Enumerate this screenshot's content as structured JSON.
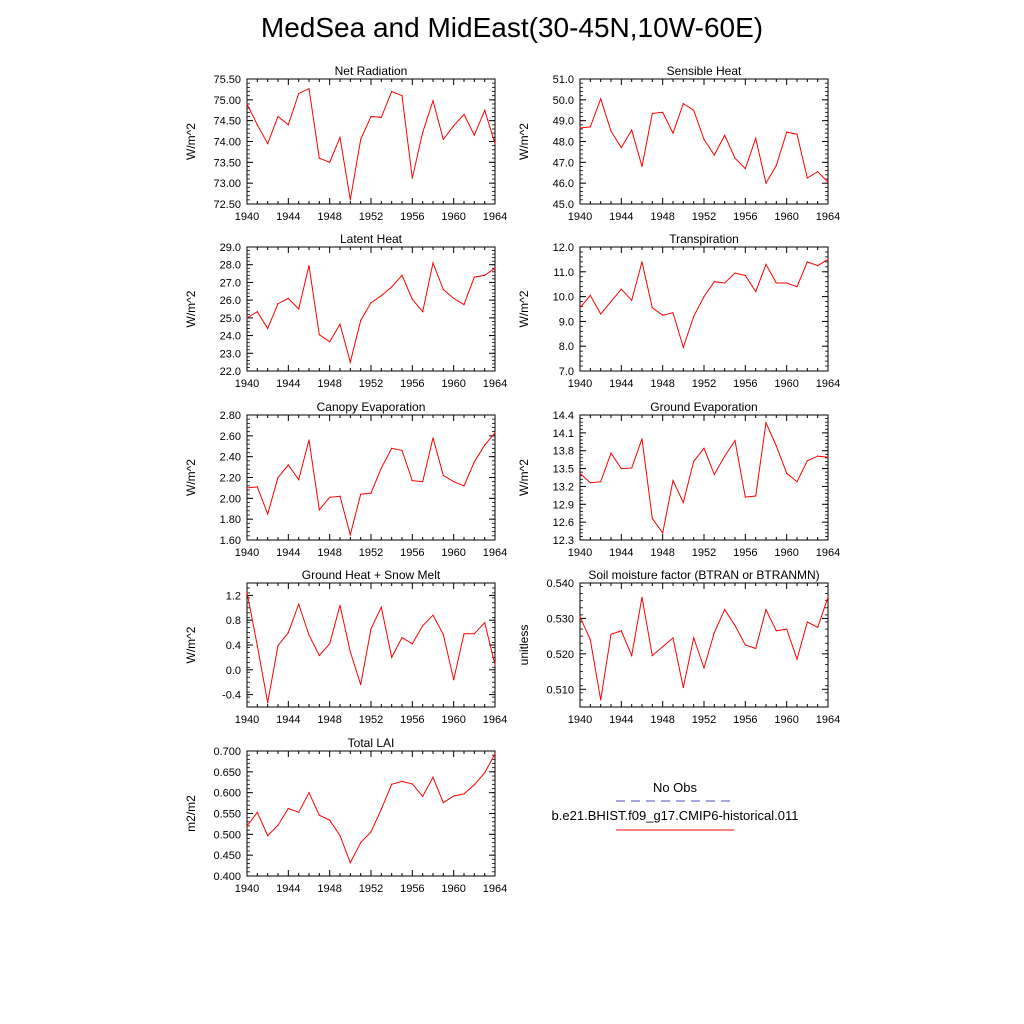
{
  "title": "MedSea and MidEast(30-45N,10W-60E)",
  "colors": {
    "series": "#ff0000",
    "obs": "#4c4cc8",
    "axis": "#000000"
  },
  "legend": {
    "obs_label": "No Obs",
    "model_label": "b.e21.BHIST.f09_g17.CMIP6-historical.011"
  },
  "chart_data": [
    {
      "type": "line",
      "title": "Net Radiation",
      "ylabel": "W/m^2",
      "xlim": [
        1940,
        1964
      ],
      "ylim": [
        72.5,
        75.5
      ],
      "xticks": [
        "1940",
        "1944",
        "1948",
        "1952",
        "1956",
        "1960",
        "1964"
      ],
      "yticks": [
        "72.50",
        "73.00",
        "73.50",
        "74.00",
        "74.50",
        "75.00",
        "75.50"
      ],
      "x": [
        1940,
        1941,
        1942,
        1943,
        1944,
        1945,
        1946,
        1947,
        1948,
        1949,
        1950,
        1951,
        1952,
        1953,
        1954,
        1955,
        1956,
        1957,
        1958,
        1959,
        1960,
        1961,
        1962,
        1963,
        1964
      ],
      "series": [
        {
          "values": [
            74.9,
            74.4,
            73.95,
            74.6,
            74.4,
            75.15,
            75.27,
            73.6,
            73.5,
            74.1,
            72.6,
            74.05,
            74.6,
            74.58,
            75.2,
            75.1,
            73.12,
            74.22,
            74.98,
            74.05,
            74.38,
            74.65,
            74.15,
            74.75,
            73.95
          ]
        }
      ]
    },
    {
      "type": "line",
      "title": "Sensible Heat",
      "ylabel": "W/m^2",
      "xlim": [
        1940,
        1964
      ],
      "ylim": [
        45,
        51
      ],
      "xticks": [
        "1940",
        "1944",
        "1948",
        "1952",
        "1956",
        "1960",
        "1964"
      ],
      "yticks": [
        "45.0",
        "46.0",
        "47.0",
        "48.0",
        "49.0",
        "50.0",
        "51.0"
      ],
      "x": [
        1940,
        1941,
        1942,
        1943,
        1944,
        1945,
        1946,
        1947,
        1948,
        1949,
        1950,
        1951,
        1952,
        1953,
        1954,
        1955,
        1956,
        1957,
        1958,
        1959,
        1960,
        1961,
        1962,
        1963,
        1964
      ],
      "series": [
        {
          "values": [
            48.65,
            48.7,
            50.05,
            48.5,
            47.7,
            48.55,
            46.8,
            49.35,
            49.4,
            48.4,
            49.82,
            49.5,
            48.1,
            47.35,
            48.3,
            47.2,
            46.7,
            48.15,
            46.0,
            46.85,
            48.45,
            48.35,
            46.25,
            46.55,
            46.05
          ]
        }
      ]
    },
    {
      "type": "line",
      "title": "Latent Heat",
      "ylabel": "W/m^2",
      "xlim": [
        1940,
        1964
      ],
      "ylim": [
        22,
        29
      ],
      "xticks": [
        "1940",
        "1944",
        "1948",
        "1952",
        "1956",
        "1960",
        "1964"
      ],
      "yticks": [
        "22.0",
        "23.0",
        "24.0",
        "25.0",
        "26.0",
        "27.0",
        "28.0",
        "29.0"
      ],
      "x": [
        1940,
        1941,
        1942,
        1943,
        1944,
        1945,
        1946,
        1947,
        1948,
        1949,
        1950,
        1951,
        1952,
        1953,
        1954,
        1955,
        1956,
        1957,
        1958,
        1959,
        1960,
        1961,
        1962,
        1963,
        1964
      ],
      "series": [
        {
          "values": [
            25.0,
            25.35,
            24.4,
            25.8,
            26.1,
            25.5,
            27.95,
            24.05,
            23.65,
            24.65,
            22.5,
            24.85,
            25.85,
            26.25,
            26.75,
            27.4,
            26.05,
            25.35,
            28.1,
            26.6,
            26.1,
            25.75,
            27.3,
            27.4,
            27.8
          ]
        }
      ]
    },
    {
      "type": "line",
      "title": "Transpiration",
      "ylabel": "W/m^2",
      "xlim": [
        1940,
        1964
      ],
      "ylim": [
        7,
        12
      ],
      "xticks": [
        "1940",
        "1944",
        "1948",
        "1952",
        "1956",
        "1960",
        "1964"
      ],
      "yticks": [
        "7.0",
        "8.0",
        "9.0",
        "10.0",
        "11.0",
        "12.0"
      ],
      "x": [
        1940,
        1941,
        1942,
        1943,
        1944,
        1945,
        1946,
        1947,
        1948,
        1949,
        1950,
        1951,
        1952,
        1953,
        1954,
        1955,
        1956,
        1957,
        1958,
        1959,
        1960,
        1961,
        1962,
        1963,
        1964
      ],
      "series": [
        {
          "values": [
            9.55,
            10.05,
            9.3,
            9.8,
            10.3,
            9.85,
            11.4,
            9.55,
            9.25,
            9.35,
            7.95,
            9.2,
            10.0,
            10.6,
            10.55,
            10.95,
            10.85,
            10.2,
            11.3,
            10.55,
            10.55,
            10.4,
            11.4,
            11.25,
            11.5
          ]
        }
      ]
    },
    {
      "type": "line",
      "title": "Canopy Evaporation",
      "ylabel": "W/m^2",
      "xlim": [
        1940,
        1964
      ],
      "ylim": [
        1.6,
        2.8
      ],
      "xticks": [
        "1940",
        "1944",
        "1948",
        "1952",
        "1956",
        "1960",
        "1964"
      ],
      "yticks": [
        "1.60",
        "1.80",
        "2.00",
        "2.20",
        "2.40",
        "2.60",
        "2.80"
      ],
      "x": [
        1940,
        1941,
        1942,
        1943,
        1944,
        1945,
        1946,
        1947,
        1948,
        1949,
        1950,
        1951,
        1952,
        1953,
        1954,
        1955,
        1956,
        1957,
        1958,
        1959,
        1960,
        1961,
        1962,
        1963,
        1964
      ],
      "series": [
        {
          "values": [
            2.1,
            2.11,
            1.85,
            2.2,
            2.32,
            2.18,
            2.56,
            1.89,
            2.01,
            2.02,
            1.65,
            2.04,
            2.05,
            2.29,
            2.48,
            2.46,
            2.17,
            2.16,
            2.58,
            2.22,
            2.16,
            2.12,
            2.35,
            2.51,
            2.63
          ]
        }
      ]
    },
    {
      "type": "line",
      "title": "Ground Evaporation",
      "ylabel": "W/m^2",
      "xlim": [
        1940,
        1964
      ],
      "ylim": [
        12.3,
        14.4
      ],
      "xticks": [
        "1940",
        "1944",
        "1948",
        "1952",
        "1956",
        "1960",
        "1964"
      ],
      "yticks": [
        "12.3",
        "12.6",
        "12.9",
        "13.2",
        "13.5",
        "13.8",
        "14.1",
        "14.4"
      ],
      "x": [
        1940,
        1941,
        1942,
        1943,
        1944,
        1945,
        1946,
        1947,
        1948,
        1949,
        1950,
        1951,
        1952,
        1953,
        1954,
        1955,
        1956,
        1957,
        1958,
        1959,
        1960,
        1961,
        1962,
        1963,
        1964
      ],
      "series": [
        {
          "values": [
            13.42,
            13.26,
            13.28,
            13.76,
            13.5,
            13.51,
            14.0,
            12.66,
            12.42,
            13.3,
            12.93,
            13.62,
            13.84,
            13.4,
            13.71,
            13.97,
            13.02,
            13.04,
            14.27,
            13.88,
            13.42,
            13.28,
            13.63,
            13.71,
            13.69
          ]
        }
      ]
    },
    {
      "type": "line",
      "title": "Ground Heat + Snow Melt",
      "ylabel": "W/m^2",
      "xlim": [
        1940,
        1964
      ],
      "ylim": [
        -0.6,
        1.4
      ],
      "xticks": [
        "1940",
        "1944",
        "1948",
        "1952",
        "1956",
        "1960",
        "1964"
      ],
      "yticks": [
        "-0.4",
        "0.0",
        "0.4",
        "0.8",
        "1.2"
      ],
      "ytick_values": [
        -0.4,
        0.0,
        0.4,
        0.8,
        1.2
      ],
      "x": [
        1940,
        1941,
        1942,
        1943,
        1944,
        1945,
        1946,
        1947,
        1948,
        1949,
        1950,
        1951,
        1952,
        1953,
        1954,
        1955,
        1956,
        1957,
        1958,
        1959,
        1960,
        1961,
        1962,
        1963,
        1964
      ],
      "series": [
        {
          "values": [
            1.25,
            0.39,
            -0.53,
            0.39,
            0.6,
            1.06,
            0.56,
            0.23,
            0.42,
            1.04,
            0.29,
            -0.24,
            0.66,
            1.01,
            0.2,
            0.52,
            0.42,
            0.71,
            0.88,
            0.57,
            -0.16,
            0.58,
            0.58,
            0.76,
            0.08
          ]
        }
      ]
    },
    {
      "type": "line",
      "title": "Soil moisture factor (BTRAN or BTRANMN)",
      "ylabel": "unitless",
      "xlim": [
        1940,
        1964
      ],
      "ylim": [
        0.505,
        0.54
      ],
      "xticks": [
        "1940",
        "1944",
        "1948",
        "1952",
        "1956",
        "1960",
        "1964"
      ],
      "yticks": [
        "0.510",
        "0.520",
        "0.530",
        "0.540"
      ],
      "ytick_values": [
        0.51,
        0.52,
        0.53,
        0.54
      ],
      "x": [
        1940,
        1941,
        1942,
        1943,
        1944,
        1945,
        1946,
        1947,
        1948,
        1949,
        1950,
        1951,
        1952,
        1953,
        1954,
        1955,
        1956,
        1957,
        1958,
        1959,
        1960,
        1961,
        1962,
        1963,
        1964
      ],
      "series": [
        {
          "values": [
            0.5305,
            0.524,
            0.507,
            0.5255,
            0.5265,
            0.5195,
            0.536,
            0.5195,
            0.522,
            0.5245,
            0.5105,
            0.5245,
            0.516,
            0.526,
            0.5325,
            0.528,
            0.5225,
            0.5215,
            0.5325,
            0.5265,
            0.527,
            0.5185,
            0.529,
            0.5275,
            0.536
          ]
        }
      ]
    },
    {
      "type": "line",
      "title": "Total LAI",
      "ylabel": "m2/m2",
      "xlim": [
        1940,
        1964
      ],
      "ylim": [
        0.4,
        0.7
      ],
      "xticks": [
        "1940",
        "1944",
        "1948",
        "1952",
        "1956",
        "1960",
        "1964"
      ],
      "yticks": [
        "0.400",
        "0.450",
        "0.500",
        "0.550",
        "0.600",
        "0.650",
        "0.700"
      ],
      "x": [
        1940,
        1941,
        1942,
        1943,
        1944,
        1945,
        1946,
        1947,
        1948,
        1949,
        1950,
        1951,
        1952,
        1953,
        1954,
        1955,
        1956,
        1957,
        1958,
        1959,
        1960,
        1961,
        1962,
        1963,
        1964
      ],
      "series": [
        {
          "values": [
            0.52,
            0.553,
            0.497,
            0.522,
            0.562,
            0.553,
            0.6,
            0.546,
            0.534,
            0.497,
            0.432,
            0.48,
            0.506,
            0.56,
            0.62,
            0.627,
            0.621,
            0.591,
            0.637,
            0.576,
            0.592,
            0.597,
            0.619,
            0.648,
            0.693
          ]
        }
      ]
    }
  ]
}
